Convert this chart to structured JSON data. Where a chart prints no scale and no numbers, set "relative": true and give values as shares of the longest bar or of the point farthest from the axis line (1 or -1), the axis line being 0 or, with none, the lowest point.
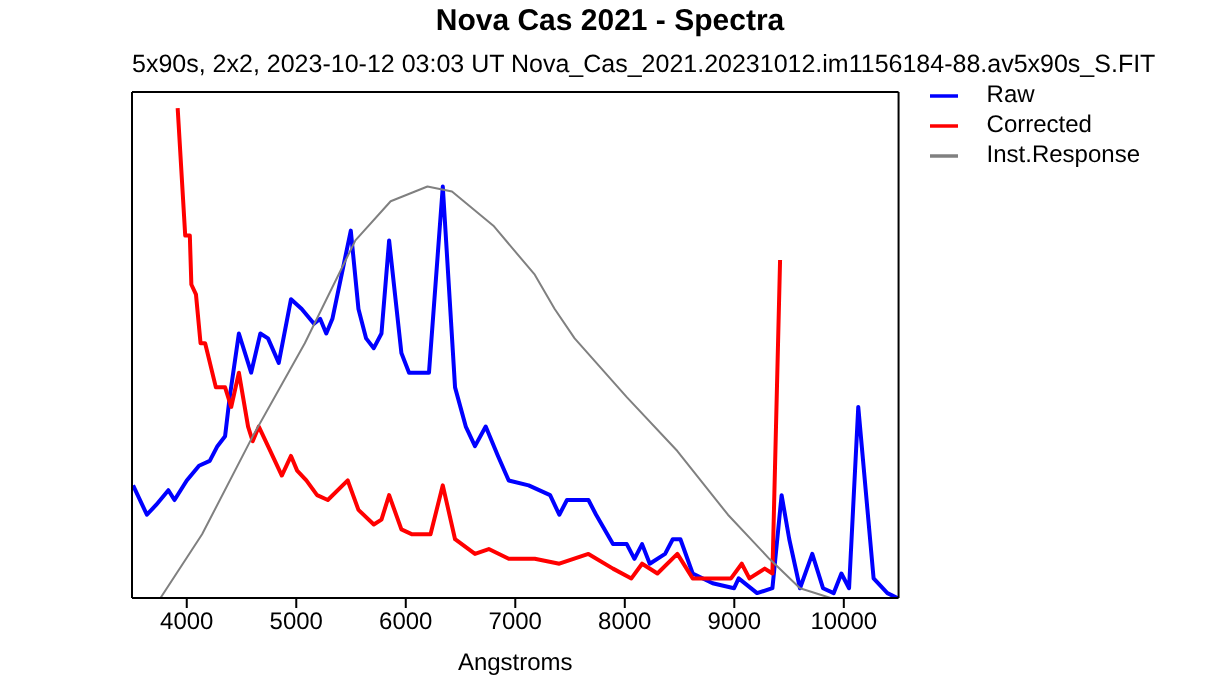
{
  "chart_data": {
    "type": "line",
    "title": "Nova Cas 2021 - Spectra",
    "subtitle": "5x90s, 2x2, 2023-10-12 03:03 UT Nova_Cas_2021.20231012.im1156184-88.av5x90s_S.FIT",
    "xlabel": "Angstroms",
    "relative": true,
    "xlim": [
      3500,
      10500
    ],
    "xticks": [
      4000,
      5000,
      6000,
      7000,
      8000,
      9000,
      10000
    ],
    "legend": "top right",
    "marker": "none",
    "line_style": "solid",
    "series": [
      {
        "name": "Raw",
        "color": "#0000ff",
        "x": [
          3510,
          3636,
          3720,
          3832,
          3888,
          4000,
          4112,
          4210,
          4280,
          4350,
          4392,
          4476,
          4588,
          4672,
          4742,
          4840,
          4952,
          5050,
          5162,
          5218,
          5274,
          5330,
          5498,
          5568,
          5638,
          5708,
          5778,
          5848,
          5960,
          6030,
          6212,
          6338,
          6450,
          6548,
          6632,
          6730,
          6842,
          6940,
          7122,
          7318,
          7402,
          7472,
          7668,
          7738,
          7892,
          8018,
          8088,
          8158,
          8228,
          8368,
          8438,
          8508,
          8620,
          8802,
          8998,
          9040,
          9208,
          9348,
          9432,
          9502,
          9600,
          9712,
          9810,
          9908,
          9978,
          10048,
          10132,
          10272,
          10398,
          10490
        ],
        "values": [
          0.23,
          0.17,
          0.19,
          0.22,
          0.2,
          0.24,
          0.27,
          0.28,
          0.31,
          0.33,
          0.41,
          0.54,
          0.46,
          0.54,
          0.53,
          0.48,
          0.61,
          0.59,
          0.56,
          0.57,
          0.54,
          0.57,
          0.75,
          0.59,
          0.53,
          0.51,
          0.54,
          0.73,
          0.5,
          0.46,
          0.46,
          0.84,
          0.43,
          0.35,
          0.31,
          0.35,
          0.29,
          0.24,
          0.23,
          0.21,
          0.17,
          0.2,
          0.2,
          0.17,
          0.11,
          0.11,
          0.08,
          0.11,
          0.07,
          0.09,
          0.12,
          0.12,
          0.05,
          0.03,
          0.02,
          0.04,
          0.01,
          0.02,
          0.21,
          0.12,
          0.02,
          0.09,
          0.02,
          0.01,
          0.05,
          0.02,
          0.39,
          0.04,
          0.01,
          0
        ]
      },
      {
        "name": "Corrected",
        "color": "#ff0000",
        "x": [
          3917,
          3986,
          4028,
          4042,
          4084,
          4126,
          4168,
          4266,
          4350,
          4406,
          4476,
          4560,
          4602,
          4658,
          4742,
          4868,
          4952,
          5008,
          5092,
          5190,
          5288,
          5470,
          5568,
          5708,
          5778,
          5848,
          5960,
          6058,
          6226,
          6338,
          6450,
          6632,
          6758,
          6940,
          7178,
          7402,
          7668,
          7892,
          8060,
          8158,
          8298,
          8480,
          8620,
          8802,
          8970,
          9068,
          9138,
          9278,
          9348,
          9418
        ],
        "values": [
          1,
          0.74,
          0.74,
          0.64,
          0.62,
          0.52,
          0.52,
          0.43,
          0.43,
          0.39,
          0.46,
          0.35,
          0.32,
          0.35,
          0.31,
          0.25,
          0.29,
          0.26,
          0.24,
          0.21,
          0.2,
          0.24,
          0.18,
          0.15,
          0.16,
          0.21,
          0.14,
          0.13,
          0.13,
          0.23,
          0.12,
          0.09,
          0.1,
          0.08,
          0.08,
          0.07,
          0.09,
          0.06,
          0.04,
          0.07,
          0.05,
          0.09,
          0.04,
          0.04,
          0.04,
          0.07,
          0.04,
          0.06,
          0.05,
          0.69
        ]
      },
      {
        "name": "Inst.Response",
        "color": "#808080",
        "x": [
          3760,
          4140,
          4602,
          5078,
          5540,
          5862,
          6198,
          6422,
          6800,
          7178,
          7360,
          7542,
          8018,
          8480,
          8942,
          9320,
          9600,
          9880,
          10500
        ],
        "values": [
          0,
          0.13,
          0.33,
          0.52,
          0.73,
          0.81,
          0.84,
          0.83,
          0.76,
          0.66,
          0.59,
          0.53,
          0.41,
          0.3,
          0.17,
          0.08,
          0.02,
          0,
          0
        ]
      }
    ]
  }
}
